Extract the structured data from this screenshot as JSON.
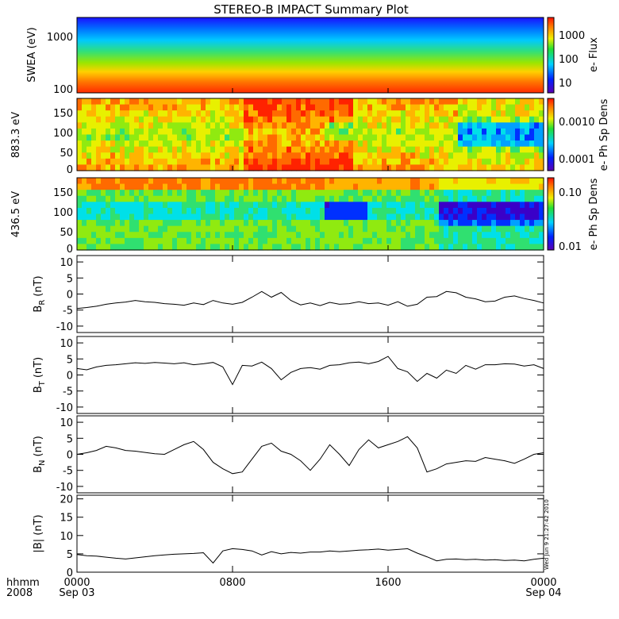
{
  "title": "STEREO-B IMPACT Summary Plot",
  "timestamp": "Wed Jun 9 21:27:42 2010",
  "time_axis": {
    "corner_labels": [
      "hhmm",
      "2008"
    ],
    "ticks": [
      {
        "hour": 0,
        "time": "0000",
        "date": "Sep 03"
      },
      {
        "hour": 8,
        "time": "0800",
        "date": ""
      },
      {
        "hour": 16,
        "time": "1600",
        "date": ""
      },
      {
        "hour": 24,
        "time": "0000",
        "date": "Sep 04"
      }
    ]
  },
  "chart_data": [
    {
      "type": "heatmap",
      "id": "swea",
      "ylabel": "SWEA (eV)",
      "y_scale": "log",
      "ylim": [
        90,
        2000
      ],
      "y_ticks": [
        "1000",
        "100"
      ],
      "colorbar_label": "e- Flux",
      "colorbar_scale": "log",
      "colorbar_ticks": [
        "1000",
        "100",
        "10"
      ],
      "description_values": {
        "low_energy_flux": "high (red)",
        "high_energy_flux": "low (blue)"
      }
    },
    {
      "type": "heatmap",
      "id": "pad883",
      "ylabel": "883.3 eV",
      "ylim": [
        0,
        180
      ],
      "y_ticks": [
        "150",
        "100",
        "50",
        "0"
      ],
      "colorbar_label": "e- Ph Sp Dens",
      "colorbar_scale": "log",
      "colorbar_ticks": [
        "0.0010",
        "0.0001"
      ]
    },
    {
      "type": "heatmap",
      "id": "pad436",
      "ylabel": "436.5 eV",
      "ylim": [
        0,
        180
      ],
      "y_ticks": [
        "150",
        "100",
        "50",
        "0"
      ],
      "colorbar_label": "e- Ph Sp Dens",
      "colorbar_scale": "log",
      "colorbar_ticks": [
        "0.10",
        "0.01"
      ]
    },
    {
      "type": "line",
      "id": "br",
      "ylabel": "B",
      "ylabel_sub": "R",
      "ylabel_unit": "(nT)",
      "ylim": [
        -12,
        12
      ],
      "y_ticks": [
        10,
        5,
        0,
        -5,
        -10
      ],
      "x_hours": [
        0,
        0.5,
        1,
        1.5,
        2,
        2.5,
        3,
        3.5,
        4,
        4.5,
        5,
        5.5,
        6,
        6.5,
        7,
        7.5,
        8,
        8.5,
        9,
        9.5,
        10,
        10.5,
        11,
        11.5,
        12,
        12.5,
        13,
        13.5,
        14,
        14.5,
        15,
        15.5,
        16,
        16.5,
        17,
        17.5,
        18,
        18.5,
        19,
        19.5,
        20,
        20.5,
        21,
        21.5,
        22,
        22.5,
        23,
        23.5,
        24
      ],
      "values": [
        -4.5,
        -4.2,
        -3.8,
        -3.2,
        -2.8,
        -2.5,
        -2,
        -2.4,
        -2.6,
        -3,
        -3.2,
        -3.5,
        -2.8,
        -3.3,
        -2,
        -2.8,
        -3.2,
        -2.6,
        -1,
        0.8,
        -1,
        0.5,
        -2,
        -3.4,
        -2.8,
        -3.6,
        -2.6,
        -3.2,
        -3,
        -2.4,
        -3,
        -2.8,
        -3.5,
        -2.4,
        -3.8,
        -3.2,
        -1,
        -0.8,
        0.8,
        0.4,
        -1,
        -1.5,
        -2.4,
        -2.2,
        -1,
        -0.6,
        -1.4,
        -2,
        -2.8
      ]
    },
    {
      "type": "line",
      "id": "bt",
      "ylabel": "B",
      "ylabel_sub": "T",
      "ylabel_unit": "(nT)",
      "ylim": [
        -12,
        12
      ],
      "y_ticks": [
        10,
        5,
        0,
        -5,
        -10
      ],
      "x_hours": [
        0,
        0.5,
        1,
        1.5,
        2,
        2.5,
        3,
        3.5,
        4,
        4.5,
        5,
        5.5,
        6,
        6.5,
        7,
        7.5,
        8,
        8.5,
        9,
        9.5,
        10,
        10.5,
        11,
        11.5,
        12,
        12.5,
        13,
        13.5,
        14,
        14.5,
        15,
        15.5,
        16,
        16.5,
        17,
        17.5,
        18,
        18.5,
        19,
        19.5,
        20,
        20.5,
        21,
        21.5,
        22,
        22.5,
        23,
        23.5,
        24
      ],
      "values": [
        2,
        1.6,
        2.5,
        3,
        3.2,
        3.5,
        3.8,
        3.6,
        3.9,
        3.7,
        3.5,
        3.8,
        3.2,
        3.5,
        3.9,
        2.5,
        -3,
        3,
        2.8,
        4,
        2,
        -1.5,
        0.8,
        2,
        2.3,
        1.8,
        3,
        3.2,
        3.8,
        4,
        3.5,
        4.2,
        5.8,
        2,
        1,
        -2,
        0.5,
        -1,
        1.5,
        0.5,
        3,
        1.8,
        3.2,
        3.2,
        3.5,
        3.4,
        2.8,
        3.2,
        2
      ]
    },
    {
      "type": "line",
      "id": "bn",
      "ylabel": "B",
      "ylabel_sub": "N",
      "ylabel_unit": "(nT)",
      "ylim": [
        -12,
        12
      ],
      "y_ticks": [
        10,
        5,
        0,
        -5,
        -10
      ],
      "x_hours": [
        0,
        0.5,
        1,
        1.5,
        2,
        2.5,
        3,
        3.5,
        4,
        4.5,
        5,
        5.5,
        6,
        6.5,
        7,
        7.5,
        8,
        8.5,
        9,
        9.5,
        10,
        10.5,
        11,
        11.5,
        12,
        12.5,
        13,
        13.5,
        14,
        14.5,
        15,
        15.5,
        16,
        16.5,
        17,
        17.5,
        18,
        18.5,
        19,
        19.5,
        20,
        20.5,
        21,
        21.5,
        22,
        22.5,
        23,
        23.5,
        24
      ],
      "values": [
        0,
        0.5,
        1.2,
        2.5,
        2,
        1.2,
        1,
        0.6,
        0.2,
        0,
        1.5,
        3,
        4,
        1.5,
        -2.5,
        -4.5,
        -6,
        -5.5,
        -1.5,
        2.5,
        3.5,
        1,
        0,
        -2,
        -5,
        -1.5,
        3,
        0,
        -3.5,
        1.5,
        4.5,
        2,
        3,
        4,
        5.5,
        2,
        -5.5,
        -4.5,
        -3,
        -2.5,
        -2,
        -2.2,
        -1,
        -1.5,
        -2,
        -2.8,
        -1.5,
        0,
        0.5
      ]
    },
    {
      "type": "line",
      "id": "bmag",
      "ylabel": "|B| (nT)",
      "ylim": [
        0,
        21
      ],
      "y_ticks": [
        20,
        15,
        10,
        5,
        0
      ],
      "x_hours": [
        0,
        0.5,
        1,
        1.5,
        2,
        2.5,
        3,
        3.5,
        4,
        4.5,
        5,
        5.5,
        6,
        6.5,
        7,
        7.5,
        8,
        8.5,
        9,
        9.5,
        10,
        10.5,
        11,
        11.5,
        12,
        12.5,
        13,
        13.5,
        14,
        14.5,
        15,
        15.5,
        16,
        16.5,
        17,
        17.5,
        18,
        18.5,
        19,
        19.5,
        20,
        20.5,
        21,
        21.5,
        22,
        22.5,
        23,
        23.5,
        24
      ],
      "values": [
        4.8,
        4.5,
        4.4,
        4.1,
        3.8,
        3.6,
        3.9,
        4.2,
        4.5,
        4.7,
        4.9,
        5,
        5.1,
        5.3,
        2.5,
        5.8,
        6.4,
        6.2,
        5.8,
        4.7,
        5.6,
        5,
        5.4,
        5.2,
        5.5,
        5.5,
        5.8,
        5.6,
        5.8,
        6,
        6.1,
        6.3,
        6,
        6.2,
        6.4,
        5.2,
        4.2,
        3.1,
        3.5,
        3.6,
        3.4,
        3.5,
        3.3,
        3.4,
        3.2,
        3.3,
        3.1,
        3.5,
        3.8
      ]
    }
  ]
}
